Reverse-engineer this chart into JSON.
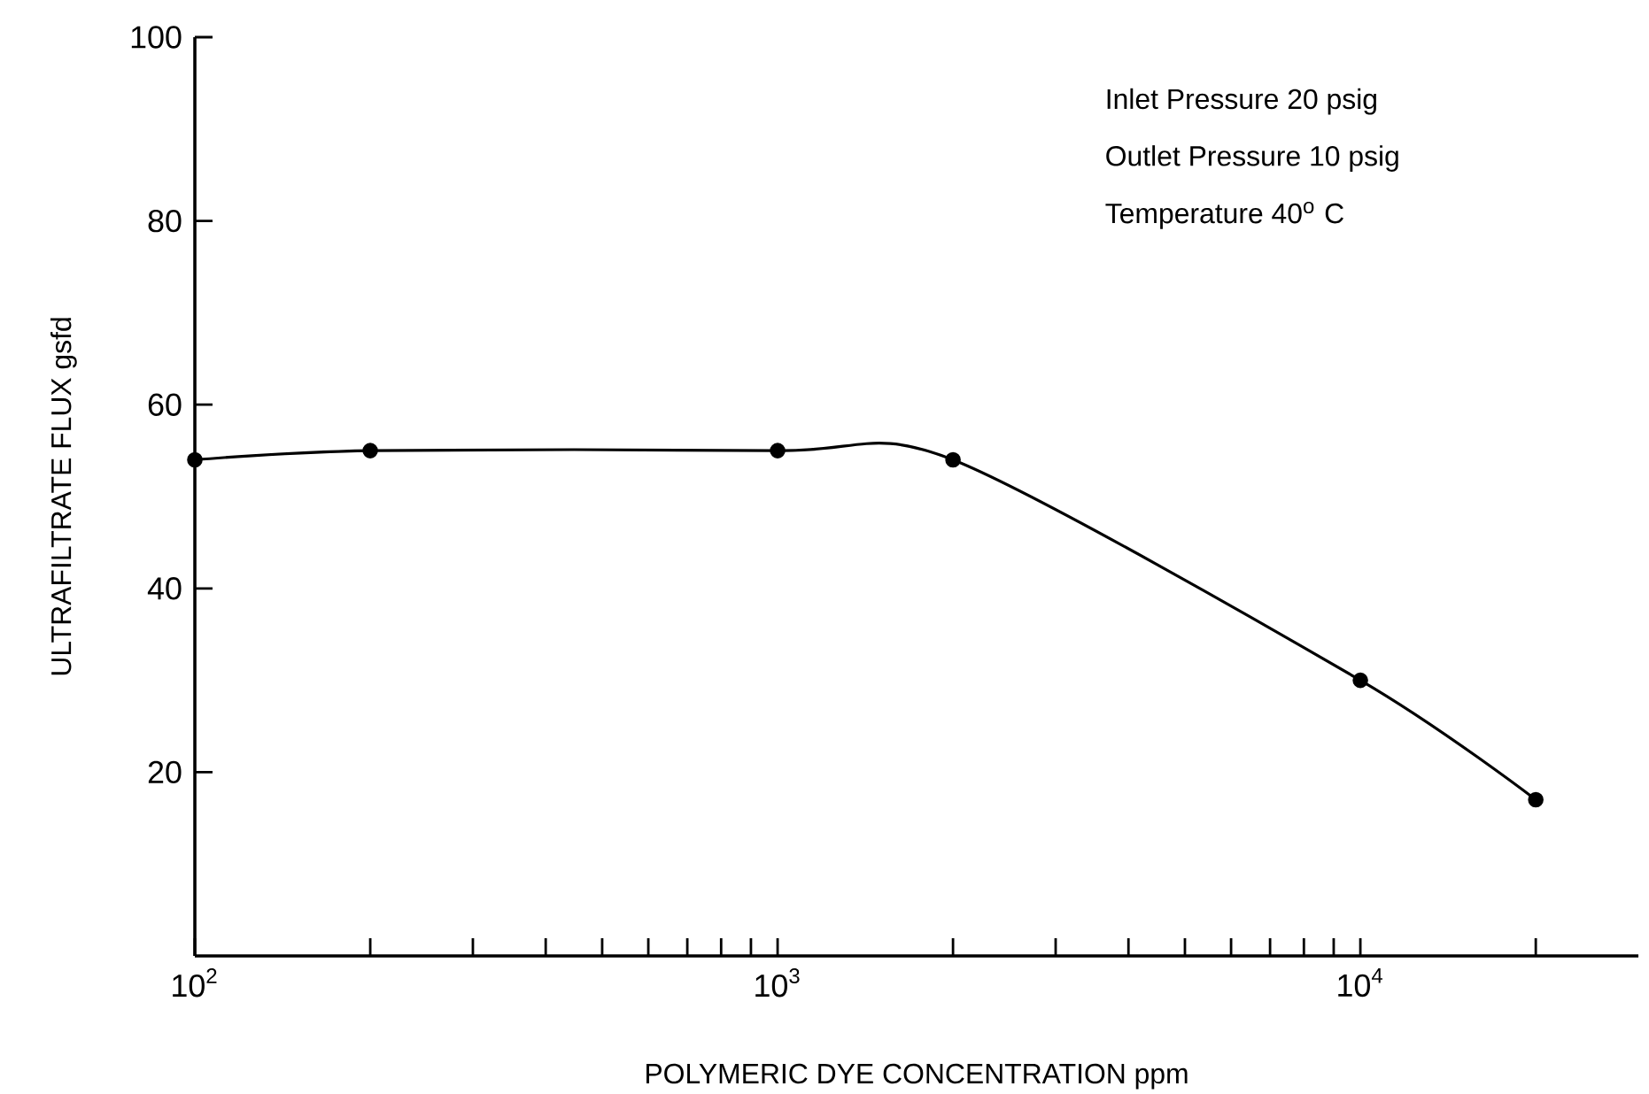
{
  "chart_data": {
    "type": "line",
    "xlabel": "POLYMERIC DYE CONCENTRATION ppm",
    "ylabel": "ULTRAFILTRATE FLUX gsfd",
    "annotations": [
      "Inlet Pressure 20 psig",
      "Outlet Pressure 10 psig",
      "Temperature 40$^{o}$ C"
    ],
    "log": "x",
    "xlim": [
      100,
      30000
    ],
    "ylim": [
      0,
      100
    ],
    "xticks": [
      {
        "value": 100,
        "label": "10$^{2}$"
      },
      {
        "value": 200,
        "label": null
      },
      {
        "value": 300,
        "label": null
      },
      {
        "value": 400,
        "label": null
      },
      {
        "value": 500,
        "label": null
      },
      {
        "value": 600,
        "label": null
      },
      {
        "value": 700,
        "label": null
      },
      {
        "value": 800,
        "label": null
      },
      {
        "value": 900,
        "label": null
      },
      {
        "value": 1000,
        "label": "10$^{3}$"
      },
      {
        "value": 2000,
        "label": null
      },
      {
        "value": 3000,
        "label": null
      },
      {
        "value": 4000,
        "label": null
      },
      {
        "value": 5000,
        "label": null
      },
      {
        "value": 6000,
        "label": null
      },
      {
        "value": 7000,
        "label": null
      },
      {
        "value": 8000,
        "label": null
      },
      {
        "value": 9000,
        "label": null
      },
      {
        "value": 10000,
        "label": "10$^{4}$"
      },
      {
        "value": 20000,
        "label": null
      }
    ],
    "yticks": [
      20,
      40,
      60,
      80,
      100
    ],
    "marker": "circle",
    "line_style": "solid",
    "grid": false,
    "x": [
      100,
      200,
      1000,
      2000,
      10000,
      20000
    ],
    "series": [
      {
        "color": "#000000",
        "values": [
          54,
          55,
          55,
          54,
          30,
          17
        ]
      }
    ]
  }
}
